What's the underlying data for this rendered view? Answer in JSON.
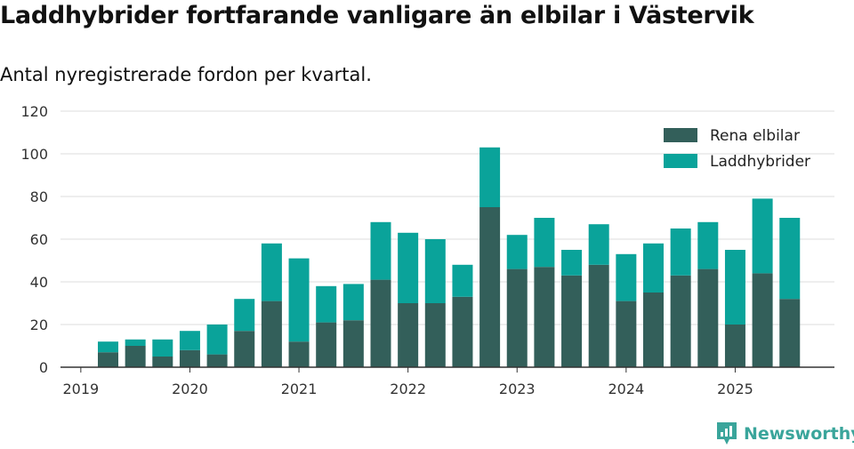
{
  "title": "Laddhybrider fortfarande vanligare än elbilar i Västervik",
  "subtitle": "Antal nyregistrerade fordon per kvartal.",
  "brand": {
    "name": "Newsworthy"
  },
  "colors": {
    "elbilar": "#335f5a",
    "laddhybrider": "#0aa39a",
    "grid": "#dddddd",
    "axis": "#333333"
  },
  "chart_data": {
    "type": "bar",
    "stacked": true,
    "categories": [
      "2019 Q2",
      "2019 Q3",
      "2019 Q4",
      "2020 Q1",
      "2020 Q2",
      "2020 Q3",
      "2020 Q4",
      "2021 Q1",
      "2021 Q2",
      "2021 Q3",
      "2021 Q4",
      "2022 Q1",
      "2022 Q2",
      "2022 Q3",
      "2022 Q4",
      "2023 Q1",
      "2023 Q2",
      "2023 Q3",
      "2023 Q4",
      "2024 Q1",
      "2024 Q2",
      "2024 Q3",
      "2024 Q4",
      "2025 Q1",
      "2025 Q2",
      "2025 Q3"
    ],
    "series": [
      {
        "name": "Rena elbilar",
        "values": [
          7,
          10,
          5,
          8,
          6,
          17,
          31,
          12,
          21,
          22,
          41,
          30,
          30,
          33,
          75,
          46,
          47,
          43,
          48,
          31,
          35,
          43,
          46,
          20,
          44,
          32
        ]
      },
      {
        "name": "Laddhybrider",
        "values": [
          5,
          3,
          8,
          9,
          14,
          15,
          27,
          39,
          17,
          17,
          27,
          33,
          30,
          15,
          28,
          16,
          23,
          12,
          19,
          22,
          23,
          22,
          22,
          35,
          35,
          38
        ]
      }
    ],
    "x_ticks": [
      "2019",
      "2020",
      "2021",
      "2022",
      "2023",
      "2024",
      "2025"
    ],
    "y_ticks": [
      0,
      20,
      40,
      60,
      80,
      100,
      120
    ],
    "ylim": [
      0,
      120
    ],
    "legend_position": "top-right"
  }
}
